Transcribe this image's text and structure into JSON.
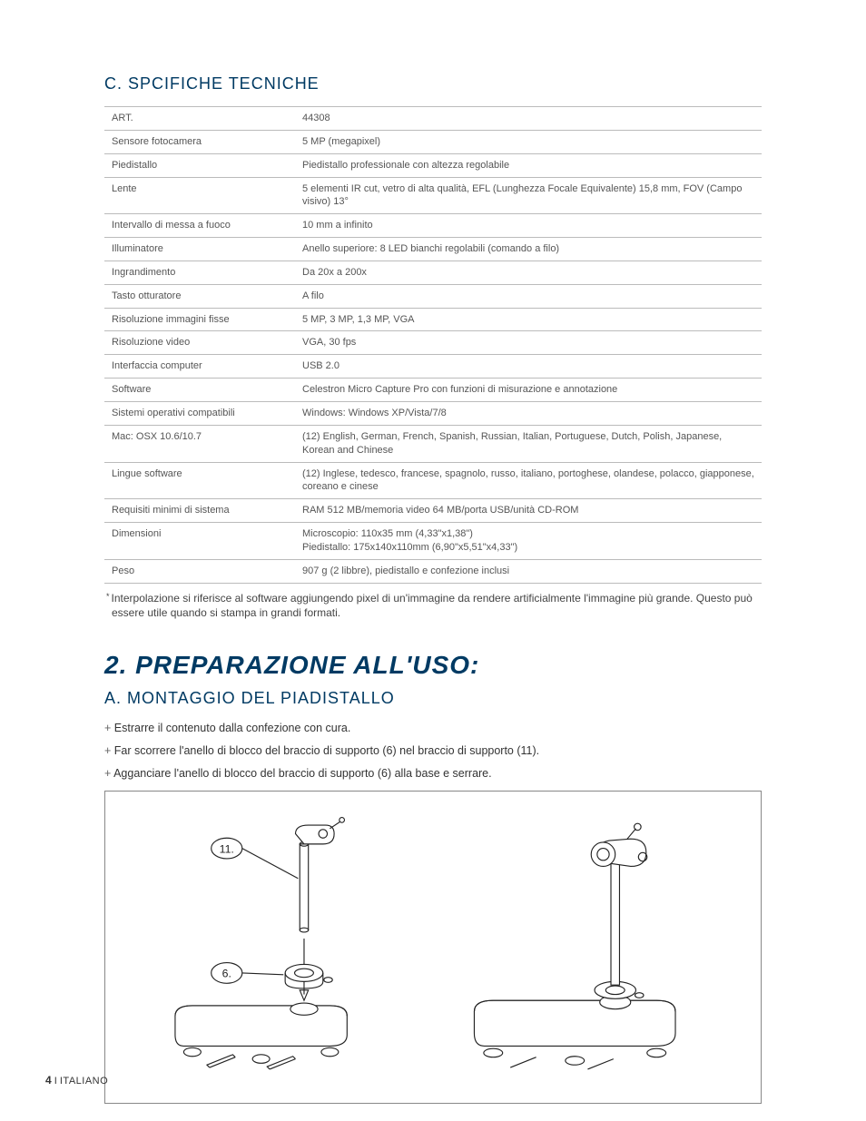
{
  "section_c_title": "C. SPCIFICHE TECNICHE",
  "spec_table": {
    "rows": [
      {
        "label": "ART.",
        "value": "44308"
      },
      {
        "label": "Sensore fotocamera",
        "value": "5 MP (megapixel)"
      },
      {
        "label": "Piedistallo",
        "value": "Piedistallo professionale con altezza regolabile"
      },
      {
        "label": "Lente",
        "value": "5 elementi IR cut, vetro di alta qualità, EFL (Lunghezza Focale Equivalente) 15,8 mm, FOV (Campo visivo) 13°"
      },
      {
        "label": "Intervallo di messa a fuoco",
        "value": "10 mm a infinito"
      },
      {
        "label": "Illuminatore",
        "value": "Anello superiore: 8 LED bianchi regolabili (comando a filo)"
      },
      {
        "label": "Ingrandimento",
        "value": "Da 20x a 200x"
      },
      {
        "label": "Tasto otturatore",
        "value": "A filo"
      },
      {
        "label": "Risoluzione immagini fisse",
        "value": "5 MP, 3 MP, 1,3 MP, VGA"
      },
      {
        "label": "Risoluzione video",
        "value": "VGA, 30 fps"
      },
      {
        "label": "Interfaccia computer",
        "value": "USB 2.0"
      },
      {
        "label": "Software",
        "value": "Celestron Micro Capture Pro con funzioni di misurazione e annotazione"
      },
      {
        "label": "Sistemi operativi compatibili",
        "value": "Windows: Windows XP/Vista/7/8"
      },
      {
        "label": "Mac: OSX 10.6/10.7",
        "value": "(12)  English, German, French, Spanish, Russian, Italian, Portuguese, Dutch, Polish, Japanese, Korean and Chinese"
      },
      {
        "label": "Lingue software",
        "value": "(12) Inglese, tedesco, francese, spagnolo, russo, italiano, portoghese, olandese, polacco, giapponese, coreano e cinese"
      },
      {
        "label": "Requisiti minimi di sistema",
        "value": "RAM 512 MB/memoria video 64 MB/porta USB/unità CD-ROM"
      },
      {
        "label": "Dimensioni",
        "value": "Microscopio: 110x35 mm (4,33\"x1,38\")\nPiedistallo: 175x140x110mm (6,90\"x5,51\"x4,33\")"
      },
      {
        "label": "Peso",
        "value": "907 g (2 libbre), piedistallo e confezione inclusi"
      }
    ]
  },
  "footnote": "Interpolazione si riferisce al software aggiungendo pixel di un'immagine da rendere artificialmente l'immagine più grande. Questo può essere utile quando si stampa in grandi formati.",
  "main_heading": "2. PREPARAZIONE ALL'USO:",
  "section_a_title": "A. MONTAGGIO DEL PIADISTALLO",
  "steps": [
    "Estrarre il contenuto dalla confezione con cura.",
    "Far scorrere l'anello di blocco del braccio di supporto (6) nel braccio di supporto (11).",
    "Agganciare l'anello di blocco del braccio di supporto (6) alla base e serrare."
  ],
  "diagram": {
    "label_11": "11.",
    "label_6": "6."
  },
  "footer": {
    "page": "4",
    "sep": " I ",
    "lang": "ITALIANO"
  }
}
